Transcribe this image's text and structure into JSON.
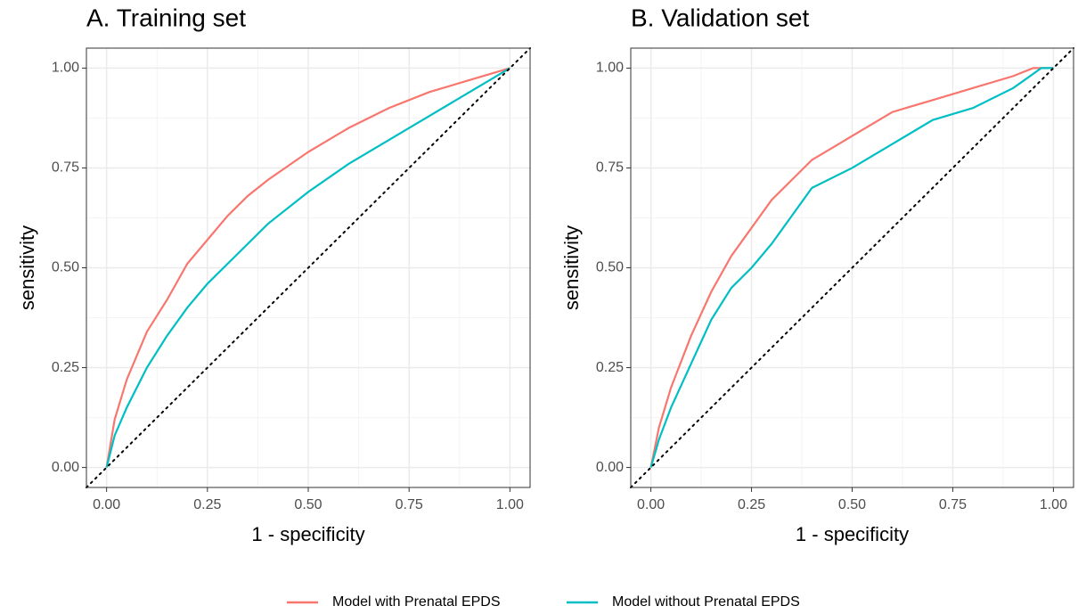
{
  "chart_data": [
    {
      "type": "line",
      "title": "A. Training set",
      "x_label": "1 - specificity",
      "y_label": "sensitivity",
      "xlim": [
        -0.05,
        1.05
      ],
      "ylim": [
        -0.05,
        1.05
      ],
      "xticks": [
        {
          "value": 0,
          "label": "0.00"
        },
        {
          "value": 0.25,
          "label": "0.25"
        },
        {
          "value": 0.5,
          "label": "0.50"
        },
        {
          "value": 0.75,
          "label": "0.75"
        },
        {
          "value": 1,
          "label": "1.00"
        }
      ],
      "yticks": [
        {
          "value": 0,
          "label": "0.00"
        },
        {
          "value": 0.25,
          "label": "0.25"
        },
        {
          "value": 0.5,
          "label": "0.50"
        },
        {
          "value": 0.75,
          "label": "0.75"
        },
        {
          "value": 1,
          "label": "1.00"
        }
      ],
      "grid": true,
      "legend": "bottom",
      "series": [
        {
          "name": "Model with Prenatal EPDS",
          "color": "#f8766d",
          "x": [
            0,
            0.02,
            0.05,
            0.1,
            0.15,
            0.2,
            0.25,
            0.3,
            0.35,
            0.4,
            0.5,
            0.6,
            0.7,
            0.8,
            0.9,
            1
          ],
          "values": [
            0,
            0.12,
            0.22,
            0.34,
            0.42,
            0.51,
            0.57,
            0.63,
            0.68,
            0.72,
            0.79,
            0.85,
            0.9,
            0.94,
            0.97,
            1
          ]
        },
        {
          "name": "Model without Prenatal EPDS",
          "color": "#00bfc4",
          "x": [
            0,
            0.02,
            0.05,
            0.1,
            0.15,
            0.2,
            0.25,
            0.3,
            0.35,
            0.4,
            0.5,
            0.6,
            0.7,
            0.8,
            0.9,
            1
          ],
          "values": [
            0,
            0.08,
            0.15,
            0.25,
            0.33,
            0.4,
            0.46,
            0.51,
            0.56,
            0.61,
            0.69,
            0.76,
            0.82,
            0.88,
            0.94,
            1
          ]
        }
      ]
    },
    {
      "type": "line",
      "title": "B. Validation set",
      "x_label": "1 - specificity",
      "y_label": "sensitivity",
      "xlim": [
        -0.05,
        1.05
      ],
      "ylim": [
        -0.05,
        1.05
      ],
      "xticks": [
        {
          "value": 0,
          "label": "0.00"
        },
        {
          "value": 0.25,
          "label": "0.25"
        },
        {
          "value": 0.5,
          "label": "0.50"
        },
        {
          "value": 0.75,
          "label": "0.75"
        },
        {
          "value": 1,
          "label": "1.00"
        }
      ],
      "yticks": [
        {
          "value": 0,
          "label": "0.00"
        },
        {
          "value": 0.25,
          "label": "0.25"
        },
        {
          "value": 0.5,
          "label": "0.50"
        },
        {
          "value": 0.75,
          "label": "0.75"
        },
        {
          "value": 1,
          "label": "1.00"
        }
      ],
      "grid": true,
      "series": [
        {
          "name": "Model with Prenatal EPDS",
          "color": "#f8766d",
          "x": [
            0,
            0.02,
            0.05,
            0.1,
            0.15,
            0.2,
            0.25,
            0.3,
            0.35,
            0.4,
            0.45,
            0.5,
            0.6,
            0.7,
            0.8,
            0.9,
            0.95,
            1
          ],
          "values": [
            0,
            0.1,
            0.2,
            0.33,
            0.44,
            0.53,
            0.6,
            0.67,
            0.72,
            0.77,
            0.8,
            0.83,
            0.89,
            0.92,
            0.95,
            0.98,
            1,
            1
          ]
        },
        {
          "name": "Model without Prenatal EPDS",
          "color": "#00bfc4",
          "x": [
            0,
            0.02,
            0.05,
            0.1,
            0.15,
            0.2,
            0.25,
            0.3,
            0.35,
            0.4,
            0.5,
            0.6,
            0.7,
            0.8,
            0.9,
            0.97,
            1
          ],
          "values": [
            0,
            0.07,
            0.15,
            0.26,
            0.37,
            0.45,
            0.5,
            0.56,
            0.63,
            0.7,
            0.75,
            0.81,
            0.87,
            0.9,
            0.95,
            1,
            1
          ]
        }
      ]
    }
  ]
}
